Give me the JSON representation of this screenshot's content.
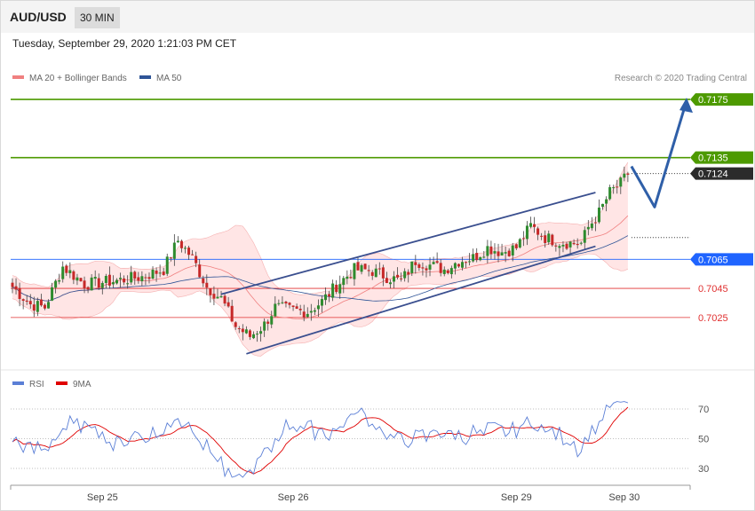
{
  "header": {
    "symbol": "AUD/USD",
    "interval": "30 MIN",
    "timestamp": "Tuesday, September 29, 2020 1:21:03 PM CET"
  },
  "legend": {
    "ma20": {
      "label": "MA 20 + Bollinger Bands",
      "color": "#f08080"
    },
    "ma50": {
      "label": "MA 50",
      "color": "#2f5597"
    }
  },
  "credit": "Research © 2020 Trading Central",
  "rsi_legend": {
    "rsi": {
      "label": "RSI",
      "color": "#5b7fd6"
    },
    "ma9": {
      "label": "9MA",
      "color": "#e00000"
    }
  },
  "chart_data": {
    "type": "candlestick",
    "symbol": "AUD/USD",
    "timeframe": "30 MIN",
    "price_range": [
      0.6995,
      0.7183
    ],
    "current_price": 0.7124,
    "levels": [
      {
        "value": 0.7175,
        "label": "0.7175",
        "kind": "resistance",
        "color": "#4d9a00"
      },
      {
        "value": 0.7135,
        "label": "0.7135",
        "kind": "resistance",
        "color": "#4d9a00"
      },
      {
        "value": 0.7124,
        "label": "0.7124",
        "kind": "last",
        "color": "#2b2b2b"
      },
      {
        "value": 0.7065,
        "label": "0.7065",
        "kind": "pivot",
        "color": "#1f64ff"
      },
      {
        "value": 0.7045,
        "label": "0.7045",
        "kind": "support",
        "color": "#e03030"
      },
      {
        "value": 0.7025,
        "label": "0.7025",
        "kind": "support",
        "color": "#e03030"
      }
    ],
    "x_ticks": [
      {
        "label": "Sep 25",
        "index": 25
      },
      {
        "label": "Sep 26",
        "index": 78
      },
      {
        "label": "Sep 29",
        "index": 140
      },
      {
        "label": "Sep 30",
        "index": 170
      }
    ],
    "rsi_levels": [
      70,
      50,
      30
    ],
    "rsi_ticks": [
      "70",
      "50",
      "30"
    ],
    "channel_upper": [
      {
        "i": 58,
        "p": 0.7041
      },
      {
        "i": 162,
        "p": 0.7111
      }
    ],
    "channel_lower": [
      {
        "i": 65,
        "p": 0.7
      },
      {
        "i": 162,
        "p": 0.7074
      }
    ],
    "forecast_path": [
      0.7129,
      0.7101,
      0.7175
    ]
  }
}
